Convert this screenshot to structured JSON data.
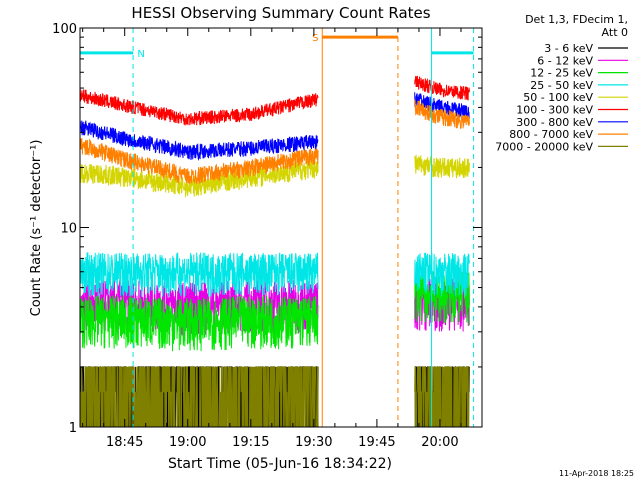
{
  "chart_data": {
    "type": "line",
    "title": "HESSI Observing Summary Count Rates",
    "xlabel": "Start Time (05-Jun-16 18:34:22)",
    "ylabel": "Count Rate (s⁻¹ detector⁻¹)",
    "y_scale": "log",
    "ylim": [
      1,
      100
    ],
    "xlim": [
      "18:34:22",
      "20:10:00"
    ],
    "x_ticks": [
      "18:45",
      "19:00",
      "19:15",
      "19:30",
      "19:45",
      "20:00"
    ],
    "y_ticks": [
      "1",
      "10",
      "100"
    ],
    "legend_header": [
      "Det 1,3, FDecim 1,",
      "Att 0"
    ],
    "legend_position": "right",
    "series": [
      {
        "name": "3 - 6 keV",
        "color": "#000000",
        "segments": [
          {
            "x": [
              "18:34:22",
              "18:45",
              "19:00",
              "19:15",
              "19:31"
            ],
            "values": [
              1.5,
              1.5,
              1.5,
              1.5,
              1.5
            ]
          },
          {
            "x": [
              "19:54",
              "20:00",
              "20:07"
            ],
            "values": [
              1.5,
              1.5,
              1.5
            ]
          }
        ]
      },
      {
        "name": "6 - 12 keV",
        "color": "#e600e6",
        "segments": [
          {
            "x": [
              "18:34:22",
              "18:45",
              "19:00",
              "19:15",
              "19:31"
            ],
            "values": [
              4.2,
              4.2,
              4.1,
              4.2,
              4.2
            ]
          },
          {
            "x": [
              "19:54",
              "20:00",
              "20:07"
            ],
            "values": [
              4.3,
              4.3,
              4.3
            ]
          }
        ]
      },
      {
        "name": "12 - 25 keV",
        "color": "#00e600",
        "segments": [
          {
            "x": [
              "18:34:22",
              "18:45",
              "19:00",
              "19:15",
              "19:31"
            ],
            "values": [
              3.5,
              3.5,
              3.4,
              3.5,
              3.5
            ]
          },
          {
            "x": [
              "19:54",
              "20:00",
              "20:07"
            ],
            "values": [
              4.8,
              4.6,
              4.6
            ]
          }
        ]
      },
      {
        "name": "25 - 50 keV",
        "color": "#00e6e6",
        "segments": [
          {
            "x": [
              "18:34:22",
              "18:45",
              "19:00",
              "19:15",
              "19:31"
            ],
            "values": [
              6.0,
              6.0,
              6.0,
              6.0,
              6.0
            ]
          },
          {
            "x": [
              "19:54",
              "20:00",
              "20:07"
            ],
            "values": [
              6.0,
              6.0,
              6.0
            ]
          }
        ]
      },
      {
        "name": "50 - 100 keV",
        "color": "#d4d400",
        "segments": [
          {
            "x": [
              "18:34:22",
              "18:45",
              "19:00",
              "19:15",
              "19:31"
            ],
            "values": [
              19,
              18,
              16,
              18,
              20
            ]
          },
          {
            "x": [
              "19:54",
              "20:00",
              "20:07"
            ],
            "values": [
              21,
              20,
              20
            ]
          }
        ]
      },
      {
        "name": "100 - 300 keV",
        "color": "#ff0000",
        "segments": [
          {
            "x": [
              "18:34:22",
              "18:45",
              "19:00",
              "19:15",
              "19:31"
            ],
            "values": [
              46,
              41,
              35,
              37,
              44
            ]
          },
          {
            "x": [
              "19:54",
              "20:00",
              "20:07"
            ],
            "values": [
              54,
              49,
              47
            ]
          }
        ]
      },
      {
        "name": "300 - 800 keV",
        "color": "#0000ff",
        "segments": [
          {
            "x": [
              "18:34:22",
              "18:45",
              "19:00",
              "19:15",
              "19:31"
            ],
            "values": [
              32,
              28,
              24,
              25,
              27
            ]
          },
          {
            "x": [
              "19:54",
              "20:00",
              "20:07"
            ],
            "values": [
              44,
              40,
              38
            ]
          }
        ]
      },
      {
        "name": "800 - 7000 keV",
        "color": "#ff8000",
        "segments": [
          {
            "x": [
              "18:34:22",
              "18:45",
              "19:00",
              "19:15",
              "19:31"
            ],
            "values": [
              26,
              22,
              18,
              20,
              23
            ]
          },
          {
            "x": [
              "19:54",
              "20:00",
              "20:07"
            ],
            "values": [
              40,
              36,
              34
            ]
          }
        ]
      },
      {
        "name": "7000 - 20000 keV",
        "color": "#808000",
        "segments": [
          {
            "x": [
              "18:34:22",
              "18:45",
              "19:00",
              "19:15",
              "19:31"
            ],
            "values": [
              1.5,
              1.5,
              1.5,
              1.5,
              1.5
            ]
          },
          {
            "x": [
              "19:54",
              "20:00",
              "20:07"
            ],
            "values": [
              1.5,
              1.5,
              1.5
            ]
          }
        ]
      }
    ],
    "annotations": [
      {
        "label": "N",
        "color": "#00e6e6",
        "x_start": "18:34:22",
        "x_end": "18:47",
        "bar_value": 75
      },
      {
        "label": "S",
        "color": "#ff8000",
        "x_start": "19:32",
        "x_end": "19:50",
        "bar_value": 90
      },
      {
        "label": "",
        "color": "#00e6e6",
        "x_start": "19:58",
        "x_end": "20:08",
        "bar_value": 75
      }
    ]
  },
  "footer": {
    "date": "11-Apr-2018 18:25"
  }
}
